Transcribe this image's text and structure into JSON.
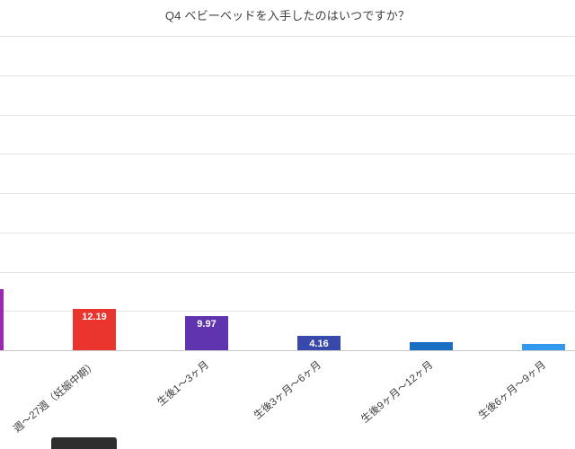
{
  "page": {
    "background": "#ffffff",
    "grid_color": "#e4e4e4",
    "baseline_color": "#c9c9c9",
    "label_color": "#3d3d3d",
    "title_color": "#3f3f3f"
  },
  "chart_data": {
    "type": "bar",
    "title": "Q4 ベビーベッドを入手したのはいつですか？",
    "xlabel": "",
    "ylabel": "",
    "grid": true,
    "legend": "none",
    "cropped": "chart is cropped: leftmost bar partially visible at left edge, its category label and the y-axis tick labels are outside the visible area",
    "bars": [
      {
        "category": "",
        "value": 18.0,
        "value_label": "",
        "color": "#9c27b0",
        "partially_visible": true,
        "estimated": true
      },
      {
        "category": "週～27週（妊娠中期）",
        "value": 12.19,
        "value_label": "12.19",
        "color": "#e9352e",
        "partially_visible": false,
        "estimated": false
      },
      {
        "category": "生後1～3ヶ月",
        "value": 9.97,
        "value_label": "9.97",
        "color": "#6134af",
        "partially_visible": false,
        "estimated": false
      },
      {
        "category": "生後3ヶ月～6ヶ月",
        "value": 4.16,
        "value_label": "4.16",
        "color": "#3949ab",
        "partially_visible": false,
        "estimated": false
      },
      {
        "category": "生後9ヶ月～12ヶ月",
        "value": 2.3,
        "value_label": "",
        "color": "#1a6fc4",
        "partially_visible": false,
        "estimated": true
      },
      {
        "category": "生後6ヶ月～9ヶ月",
        "value": 1.9,
        "value_label": "",
        "color": "#3399ee",
        "partially_visible": false,
        "estimated": true
      }
    ]
  }
}
